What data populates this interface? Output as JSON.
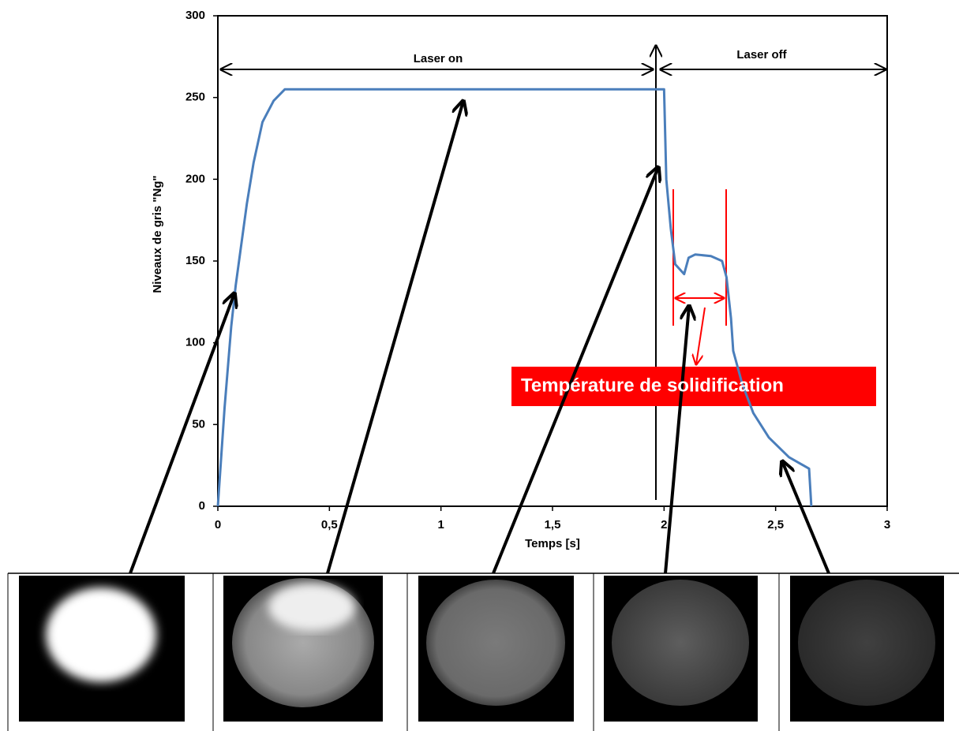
{
  "chart_data": {
    "type": "line",
    "x_label": "Temps [s]",
    "y_label": "Niveaux de gris \"Ng\"",
    "xlim": [
      0,
      3
    ],
    "ylim": [
      0,
      300
    ],
    "xticks": [
      0,
      {
        "value": 0.5,
        "label": "0,5"
      },
      1,
      {
        "value": 1.5,
        "label": "1,5"
      },
      2,
      {
        "value": 2.5,
        "label": "2,5"
      },
      3
    ],
    "yticks": [
      0,
      50,
      100,
      150,
      200,
      250,
      300
    ],
    "series": [
      {
        "color": "#4a7ebb",
        "x": [
          0,
          0.01,
          0.03,
          0.06,
          0.08,
          0.1,
          0.13,
          0.16,
          0.2,
          0.25,
          0.3,
          2.0,
          2.01,
          2.03,
          2.05,
          2.07,
          2.09,
          2.11,
          2.14,
          2.21,
          2.26,
          2.28,
          2.3,
          2.31,
          2.35,
          2.4,
          2.47,
          2.56,
          2.65,
          2.66
        ],
        "values": [
          0,
          20,
          60,
          110,
          135,
          155,
          185,
          210,
          235,
          248,
          255,
          255,
          200,
          170,
          148,
          145,
          142,
          152,
          154,
          153,
          150,
          140,
          115,
          95,
          75,
          57,
          42,
          30,
          23,
          0
        ]
      }
    ],
    "annotations": [
      "Laser on",
      "Laser off",
      "Température de solidification"
    ]
  }
}
